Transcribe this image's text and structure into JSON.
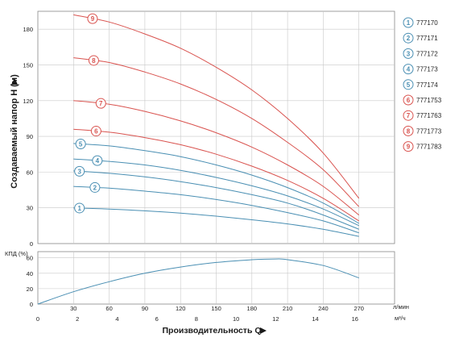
{
  "chart_data": [
    {
      "type": "line",
      "ylabel": "Создаваемый напор H (м)",
      "ylim": [
        0,
        195
      ],
      "yticks": [
        0,
        30,
        60,
        90,
        120,
        150,
        180
      ],
      "xlabel": "Производительность Q",
      "x_unit_top": "л/мин",
      "x_unit_bottom": "м³/ч",
      "x_top_ticks": [
        "30",
        "60",
        "90",
        "120",
        "150",
        "180",
        "210",
        "240",
        "270"
      ],
      "x_bottom_ticks": [
        "0",
        "2",
        "4",
        "6",
        "8",
        "10",
        "12",
        "14",
        "16"
      ],
      "grid": true,
      "legend_position": "right",
      "series": [
        {
          "id": "1",
          "name": "777170",
          "group": "blue",
          "x": [
            30,
            60,
            90,
            120,
            150,
            180,
            210,
            240,
            270
          ],
          "values": [
            30,
            29,
            27.5,
            25.5,
            23,
            20,
            16.5,
            12,
            6
          ]
        },
        {
          "id": "2",
          "name": "777171",
          "group": "blue",
          "x": [
            30,
            60,
            90,
            120,
            150,
            180,
            210,
            240,
            270
          ],
          "values": [
            48,
            46.5,
            44,
            41,
            37,
            32,
            26,
            19,
            9
          ]
        },
        {
          "id": "3",
          "name": "777172",
          "group": "blue",
          "x": [
            30,
            60,
            90,
            120,
            150,
            180,
            210,
            240,
            270
          ],
          "values": [
            61,
            59,
            56,
            52,
            47,
            41,
            34,
            24,
            12
          ]
        },
        {
          "id": "4",
          "name": "777173",
          "group": "blue",
          "x": [
            30,
            60,
            90,
            120,
            150,
            180,
            210,
            240,
            270
          ],
          "values": [
            71,
            69,
            66,
            61.5,
            55.5,
            48.5,
            40,
            29,
            15
          ]
        },
        {
          "id": "5",
          "name": "777174",
          "group": "blue",
          "x": [
            30,
            60,
            90,
            120,
            150,
            180,
            210,
            240,
            270
          ],
          "values": [
            84,
            82,
            78,
            73,
            66,
            57.5,
            47,
            34,
            17
          ]
        },
        {
          "id": "6",
          "name": "7771753",
          "group": "red",
          "x": [
            30,
            60,
            90,
            120,
            150,
            180,
            210,
            240,
            270
          ],
          "values": [
            96,
            93.5,
            89,
            83,
            75,
            65,
            53,
            38,
            19
          ]
        },
        {
          "id": "7",
          "name": "7771763",
          "group": "red",
          "x": [
            30,
            60,
            90,
            120,
            150,
            180,
            210,
            240,
            270
          ],
          "values": [
            120,
            117,
            111,
            103,
            93,
            81,
            66,
            48,
            24
          ]
        },
        {
          "id": "8",
          "name": "7771773",
          "group": "red",
          "x": [
            30,
            60,
            90,
            120,
            150,
            180,
            210,
            240,
            270
          ],
          "values": [
            156,
            152,
            144,
            134,
            121,
            105,
            85,
            62,
            31
          ]
        },
        {
          "id": "9",
          "name": "7771783",
          "group": "red",
          "x": [
            30,
            60,
            90,
            120,
            150,
            180,
            210,
            240,
            270
          ],
          "values": [
            192,
            186,
            176,
            164,
            148,
            129,
            105,
            76,
            38
          ]
        }
      ],
      "curve_labels": [
        {
          "series": "1",
          "x": 35
        },
        {
          "series": "2",
          "x": 48
        },
        {
          "series": "3",
          "x": 35
        },
        {
          "series": "4",
          "x": 50
        },
        {
          "series": "5",
          "x": 36
        },
        {
          "series": "6",
          "x": 49
        },
        {
          "series": "7",
          "x": 53
        },
        {
          "series": "8",
          "x": 47
        },
        {
          "series": "9",
          "x": 46
        }
      ]
    },
    {
      "type": "line",
      "ylabel": "КПД (%)",
      "ylim": [
        0,
        68
      ],
      "yticks": [
        0,
        20,
        40,
        60
      ],
      "grid": true,
      "series": [
        {
          "name": "",
          "x": [
            0,
            30,
            60,
            90,
            120,
            150,
            180,
            200,
            210,
            240,
            270
          ],
          "values": [
            0,
            16,
            29,
            40,
            48,
            54,
            57.5,
            58.5,
            57.5,
            50,
            34
          ]
        }
      ]
    }
  ],
  "colors": {
    "blue": "#4a8fb3",
    "red": "#d9534f",
    "grid": "#c8c8c8",
    "frame": "#888888"
  }
}
